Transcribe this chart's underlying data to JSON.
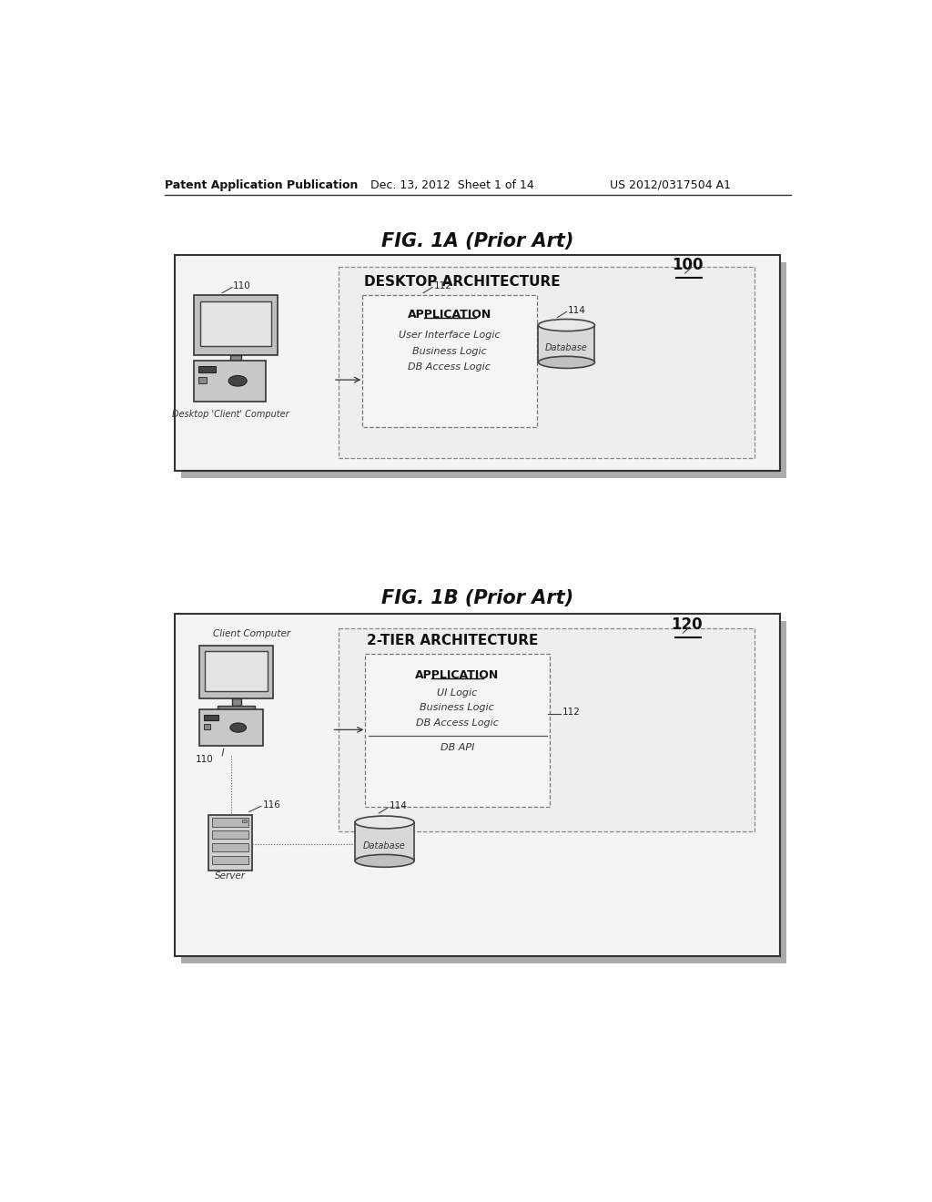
{
  "bg_color": "#ffffff",
  "header_text": "Patent Application Publication",
  "header_date": "Dec. 13, 2012  Sheet 1 of 14",
  "header_patent": "US 2012/0317504 A1",
  "fig1a_title": "FIG. 1A (Prior Art)",
  "fig1b_title": "FIG. 1B (Prior Art)",
  "fig1a_box_title": "DESKTOP ARCHITECTURE",
  "fig1a_box_ref": "100",
  "fig1a_app_title": "APPLICATION",
  "fig1a_app_lines": [
    "User Interface Logic",
    "Business Logic",
    "DB Access Logic"
  ],
  "fig1a_ref_110": "110",
  "fig1a_ref_112": "112",
  "fig1a_ref_114": "114",
  "fig1a_computer_label": "Desktop 'Client' Computer",
  "fig1a_db_label": "Database",
  "fig1b_box_title": "2-TIER ARCHITECTURE",
  "fig1b_box_ref": "120",
  "fig1b_app_title": "APPLICATION",
  "fig1b_app_lines": [
    "UI Logic",
    "Business Logic",
    "DB Access Logic"
  ],
  "fig1b_dbapi": "DB API",
  "fig1b_ref_110": "110",
  "fig1b_ref_112": "112",
  "fig1b_ref_114": "114",
  "fig1b_ref_116": "116",
  "fig1b_client_label": "Client Computer",
  "fig1b_db_label": "Database",
  "fig1b_server_label": "Server"
}
